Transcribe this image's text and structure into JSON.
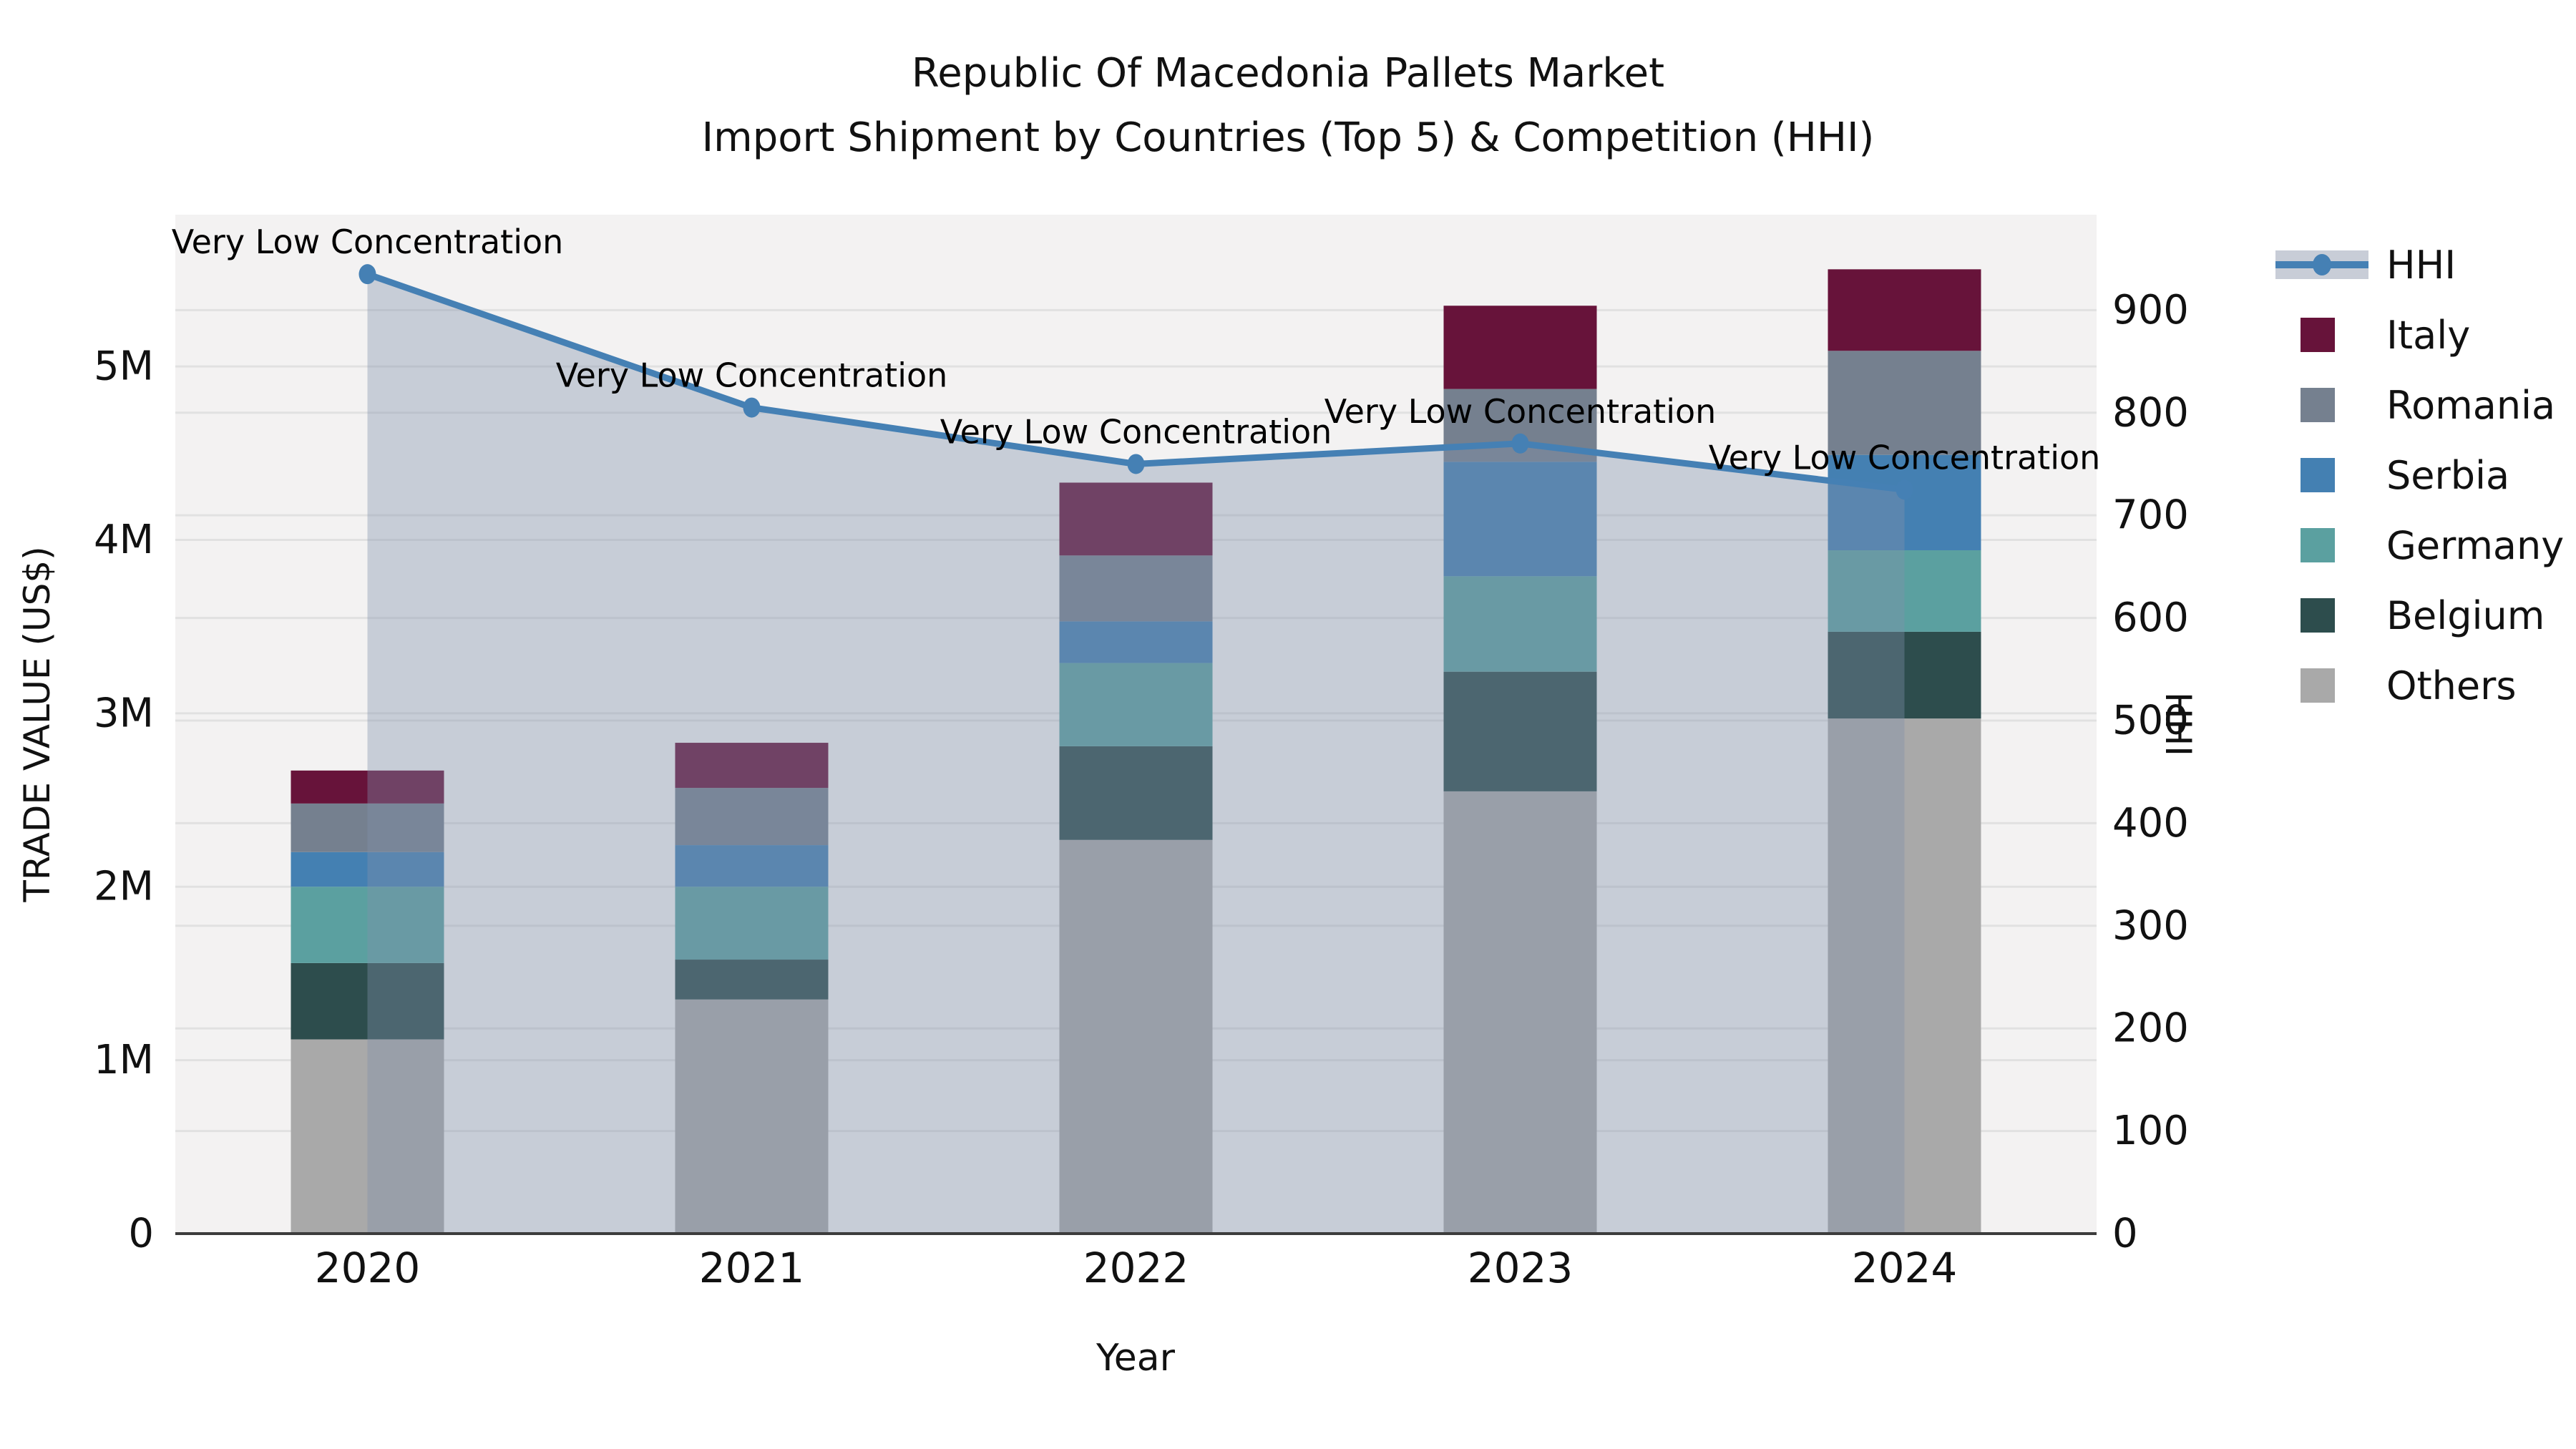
{
  "title": {
    "line1": "Republic Of Macedonia Pallets Market",
    "line2": "Import Shipment by Countries (Top 5) & Competition (HHI)"
  },
  "axes": {
    "x_label": "Year",
    "y_left_label": "TRADE VALUE (US$)",
    "y_right_label": "HHI",
    "y_left_ticks": [
      "0",
      "1M",
      "2M",
      "3M",
      "4M",
      "5M"
    ],
    "y_right_ticks": [
      "0",
      "100",
      "200",
      "300",
      "400",
      "500",
      "600",
      "700",
      "800",
      "900"
    ]
  },
  "legend": [
    {
      "label": "HHI",
      "type": "line",
      "color": "#4580b4"
    },
    {
      "label": "Italy",
      "type": "patch",
      "color": "#67133a"
    },
    {
      "label": "Romania",
      "type": "patch",
      "color": "#75808f"
    },
    {
      "label": "Serbia",
      "type": "patch",
      "color": "#4480b2"
    },
    {
      "label": "Germany",
      "type": "patch",
      "color": "#5ba0a0"
    },
    {
      "label": "Belgium",
      "type": "patch",
      "color": "#2d4d4d"
    },
    {
      "label": "Others",
      "type": "patch",
      "color": "#a9a9a9"
    }
  ],
  "chart_data": {
    "type": "combo: stacked bar (trade value, left axis) + line (HHI, right axis)",
    "categories": [
      "2020",
      "2021",
      "2022",
      "2023",
      "2024"
    ],
    "bar_unit": "US$ millions",
    "series": [
      {
        "name": "Others",
        "color": "#a9a9a9",
        "values": [
          1.12,
          1.35,
          2.27,
          2.55,
          2.97
        ]
      },
      {
        "name": "Belgium",
        "color": "#2d4d4d",
        "values": [
          0.44,
          0.23,
          0.54,
          0.69,
          0.5
        ]
      },
      {
        "name": "Germany",
        "color": "#5ba0a0",
        "values": [
          0.44,
          0.42,
          0.48,
          0.55,
          0.47
        ]
      },
      {
        "name": "Serbia",
        "color": "#4480b2",
        "values": [
          0.2,
          0.24,
          0.24,
          0.66,
          0.55
        ]
      },
      {
        "name": "Romania",
        "color": "#75808f",
        "values": [
          0.28,
          0.33,
          0.38,
          0.42,
          0.6
        ]
      },
      {
        "name": "Italy",
        "color": "#67133a",
        "values": [
          0.19,
          0.26,
          0.42,
          0.48,
          0.47
        ]
      }
    ],
    "bar_totals": [
      2.67,
      2.83,
      4.33,
      5.35,
      5.56
    ],
    "line": {
      "name": "HHI",
      "color": "#4580b4",
      "area_fill": "rgba(130,145,172,0.38)",
      "values": [
        935,
        805,
        750,
        770,
        725
      ]
    },
    "annotations": [
      "Very Low Concentration",
      "Very Low Concentration",
      "Very Low Concentration",
      "Very Low Concentration",
      "Very Low Concentration"
    ],
    "ylim_left": [
      0,
      5.875
    ],
    "ylim_right": [
      0,
      993
    ],
    "grid": true,
    "legend_position": "outside right-top",
    "plot_background": "#f3f2f2",
    "grid_color": "#e1e1e1"
  }
}
